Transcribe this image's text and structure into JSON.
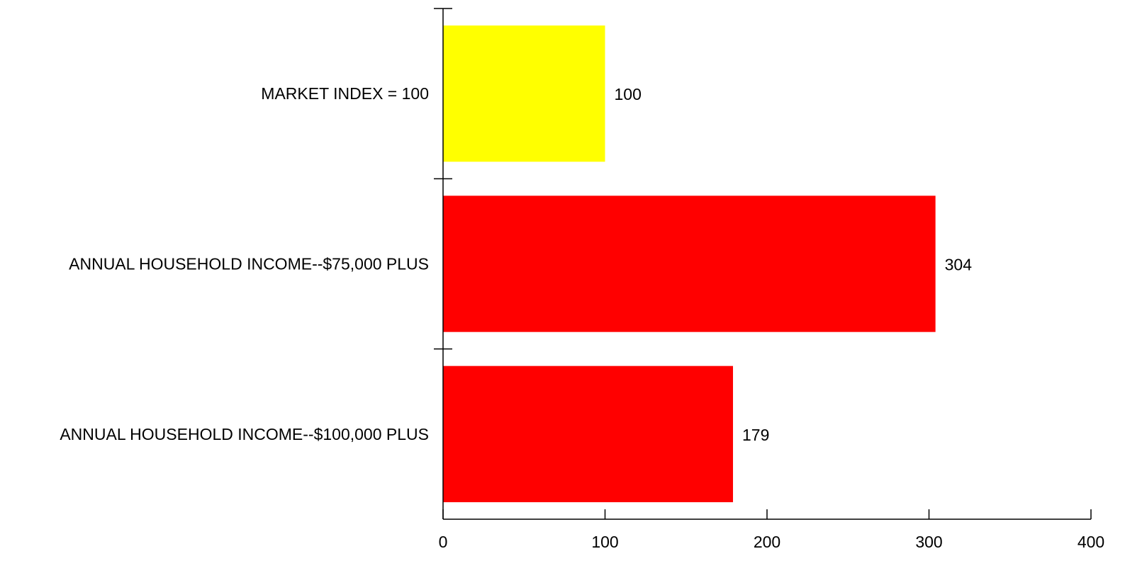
{
  "colors": {
    "baseline_bar": "#FFFF00",
    "segment_bar": "#FF0000",
    "axis": "#000000",
    "background": "#FFFFFF"
  },
  "chart_data": {
    "type": "bar",
    "orientation": "horizontal",
    "title": "",
    "xlabel": "",
    "ylabel": "",
    "categories": [
      "MARKET INDEX = 100",
      "ANNUAL HOUSEHOLD INCOME--$75,000 PLUS",
      "ANNUAL HOUSEHOLD INCOME--$100,000 PLUS"
    ],
    "values": [
      100,
      304,
      179
    ],
    "value_labels": [
      "100",
      "304",
      "179"
    ],
    "bar_colors": [
      "#FFFF00",
      "#FF0000",
      "#FF0000"
    ],
    "xlim": [
      0,
      400
    ],
    "xticks": [
      0,
      100,
      200,
      300,
      400
    ],
    "xtick_labels": [
      "0",
      "100",
      "200",
      "300",
      "400"
    ],
    "grid": false,
    "legend": "none"
  }
}
